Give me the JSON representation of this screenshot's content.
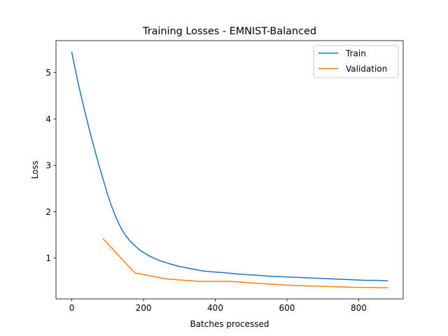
{
  "chart_data": {
    "type": "line",
    "title": "Training Losses - EMNIST-Balanced",
    "xlabel": "Batches processed",
    "ylabel": "Loss",
    "xlim": [
      -44,
      924
    ],
    "ylim": [
      0.12,
      5.69
    ],
    "xticks": [
      0,
      200,
      400,
      600,
      800
    ],
    "yticks": [
      1,
      2,
      3,
      4,
      5
    ],
    "grid": false,
    "legend": "top-right",
    "series": [
      {
        "name": "Train",
        "color": "#1f77b4",
        "x": [
          0,
          10,
          20,
          30,
          40,
          50,
          60,
          70,
          80,
          90,
          100,
          110,
          120,
          130,
          140,
          150,
          160,
          170,
          180,
          190,
          200,
          220,
          240,
          260,
          280,
          300,
          320,
          340,
          360,
          380,
          400,
          430,
          460,
          490,
          520,
          550,
          580,
          610,
          640,
          670,
          700,
          730,
          760,
          790,
          820,
          850,
          880
        ],
        "y": [
          5.44,
          5.06,
          4.7,
          4.37,
          4.05,
          3.74,
          3.45,
          3.16,
          2.89,
          2.63,
          2.37,
          2.14,
          1.94,
          1.76,
          1.61,
          1.49,
          1.39,
          1.31,
          1.24,
          1.17,
          1.12,
          1.03,
          0.96,
          0.91,
          0.86,
          0.82,
          0.79,
          0.76,
          0.73,
          0.71,
          0.7,
          0.68,
          0.66,
          0.64,
          0.63,
          0.61,
          0.6,
          0.59,
          0.58,
          0.57,
          0.56,
          0.55,
          0.54,
          0.53,
          0.52,
          0.52,
          0.51
        ]
      },
      {
        "name": "Validation",
        "color": "#ff7f0e",
        "x": [
          88,
          176,
          264,
          352,
          440,
          528,
          616,
          704,
          792,
          880
        ],
        "y": [
          1.41,
          0.68,
          0.55,
          0.5,
          0.5,
          0.45,
          0.41,
          0.39,
          0.37,
          0.36
        ]
      }
    ]
  }
}
